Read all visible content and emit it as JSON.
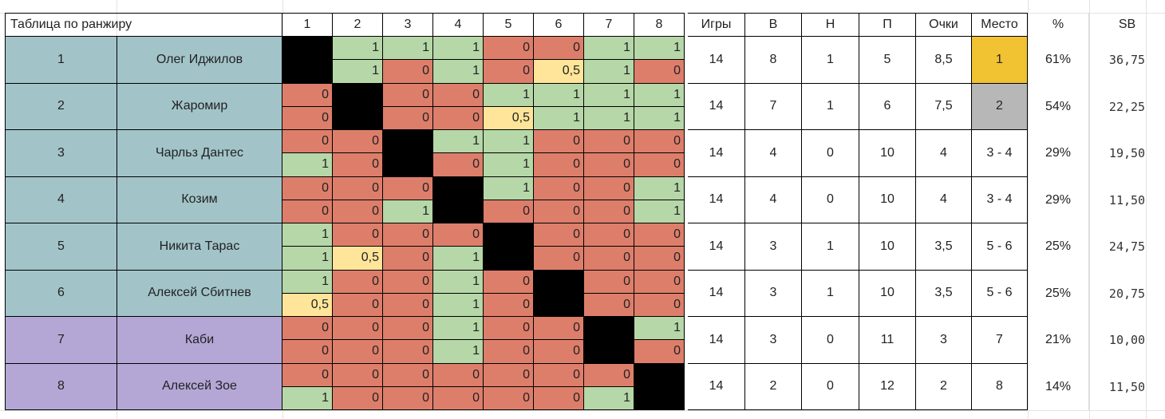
{
  "title": "Таблица по ранжиру",
  "headers": {
    "opponents": [
      "1",
      "2",
      "3",
      "4",
      "5",
      "6",
      "7",
      "8"
    ],
    "stats": [
      "Игры",
      "В",
      "Н",
      "П",
      "Очки",
      "Место"
    ],
    "percent": "%",
    "sb": "SB"
  },
  "colors": {
    "teal": "#a2c4c9",
    "purple": "#b4a7d6",
    "win": "#b6d7a8",
    "loss": "#dd7e6b",
    "draw": "#ffe599",
    "self": "#000000",
    "gold": "#f1c232",
    "silver": "#b7b7b7"
  },
  "players": [
    {
      "rank": "1",
      "name": "Олег Иджилов",
      "group": "teal",
      "results": [
        null,
        [
          "1",
          "1"
        ],
        [
          "1",
          "0"
        ],
        [
          "1",
          "1"
        ],
        [
          "0",
          "0"
        ],
        [
          "0",
          "0,5"
        ],
        [
          "1",
          "1"
        ],
        [
          "1",
          "0"
        ]
      ],
      "games": "14",
      "wins": "8",
      "draws": "1",
      "losses": "5",
      "points": "8,5",
      "place": "1",
      "place_color": "gold",
      "pct": "61%",
      "sb": "36,75"
    },
    {
      "rank": "2",
      "name": "Жаромир",
      "group": "teal",
      "results": [
        [
          "0",
          "0"
        ],
        null,
        [
          "0",
          "0"
        ],
        [
          "0",
          "0"
        ],
        [
          "1",
          "0,5"
        ],
        [
          "1",
          "1"
        ],
        [
          "1",
          "1"
        ],
        [
          "1",
          "1"
        ]
      ],
      "games": "14",
      "wins": "7",
      "draws": "1",
      "losses": "6",
      "points": "7,5",
      "place": "2",
      "place_color": "silver",
      "pct": "54%",
      "sb": "22,25"
    },
    {
      "rank": "3",
      "name": "Чарльз Дантес",
      "group": "teal",
      "results": [
        [
          "0",
          "1"
        ],
        [
          "0",
          "0"
        ],
        null,
        [
          "1",
          "0"
        ],
        [
          "1",
          "1"
        ],
        [
          "0",
          "0"
        ],
        [
          "0",
          "0"
        ],
        [
          "0",
          "0"
        ]
      ],
      "games": "14",
      "wins": "4",
      "draws": "0",
      "losses": "10",
      "points": "4",
      "place": "3 - 4",
      "place_color": null,
      "pct": "29%",
      "sb": "19,50"
    },
    {
      "rank": "4",
      "name": "Козим",
      "group": "teal",
      "results": [
        [
          "0",
          "0"
        ],
        [
          "0",
          "0"
        ],
        [
          "0",
          "1"
        ],
        null,
        [
          "1",
          "0"
        ],
        [
          "0",
          "0"
        ],
        [
          "0",
          "0"
        ],
        [
          "1",
          "1"
        ]
      ],
      "games": "14",
      "wins": "4",
      "draws": "0",
      "losses": "10",
      "points": "4",
      "place": "3 - 4",
      "place_color": null,
      "pct": "29%",
      "sb": "11,50"
    },
    {
      "rank": "5",
      "name": "Никита Тарас",
      "group": "teal",
      "results": [
        [
          "1",
          "1"
        ],
        [
          "0",
          "0,5"
        ],
        [
          "0",
          "0"
        ],
        [
          "0",
          "1"
        ],
        null,
        [
          "0",
          "0"
        ],
        [
          "0",
          "0"
        ],
        [
          "0",
          "0"
        ]
      ],
      "games": "14",
      "wins": "3",
      "draws": "1",
      "losses": "10",
      "points": "3,5",
      "place": "5 - 6",
      "place_color": null,
      "pct": "25%",
      "sb": "24,75"
    },
    {
      "rank": "6",
      "name": "Алексей Сбитнев",
      "group": "teal",
      "results": [
        [
          "1",
          "0,5"
        ],
        [
          "0",
          "0"
        ],
        [
          "0",
          "0"
        ],
        [
          "1",
          "1"
        ],
        [
          "0",
          "0"
        ],
        null,
        [
          "0",
          "0"
        ],
        [
          "0",
          "0"
        ]
      ],
      "games": "14",
      "wins": "3",
      "draws": "1",
      "losses": "10",
      "points": "3,5",
      "place": "5 - 6",
      "place_color": null,
      "pct": "25%",
      "sb": "20,75"
    },
    {
      "rank": "7",
      "name": "Каби",
      "group": "purple",
      "results": [
        [
          "0",
          "0"
        ],
        [
          "0",
          "0"
        ],
        [
          "0",
          "0"
        ],
        [
          "1",
          "1"
        ],
        [
          "0",
          "0"
        ],
        [
          "0",
          "0"
        ],
        null,
        [
          "1",
          "0"
        ]
      ],
      "games": "14",
      "wins": "3",
      "draws": "0",
      "losses": "11",
      "points": "3",
      "place": "7",
      "place_color": null,
      "pct": "21%",
      "sb": "10,00"
    },
    {
      "rank": "8",
      "name": "Алексей Зое",
      "group": "purple",
      "results": [
        [
          "0",
          "1"
        ],
        [
          "0",
          "0"
        ],
        [
          "0",
          "0"
        ],
        [
          "0",
          "0"
        ],
        [
          "0",
          "0"
        ],
        [
          "0",
          "0"
        ],
        [
          "0",
          "1"
        ],
        null
      ],
      "games": "14",
      "wins": "2",
      "draws": "0",
      "losses": "12",
      "points": "2",
      "place": "8",
      "place_color": null,
      "pct": "14%",
      "sb": "11,50"
    }
  ]
}
